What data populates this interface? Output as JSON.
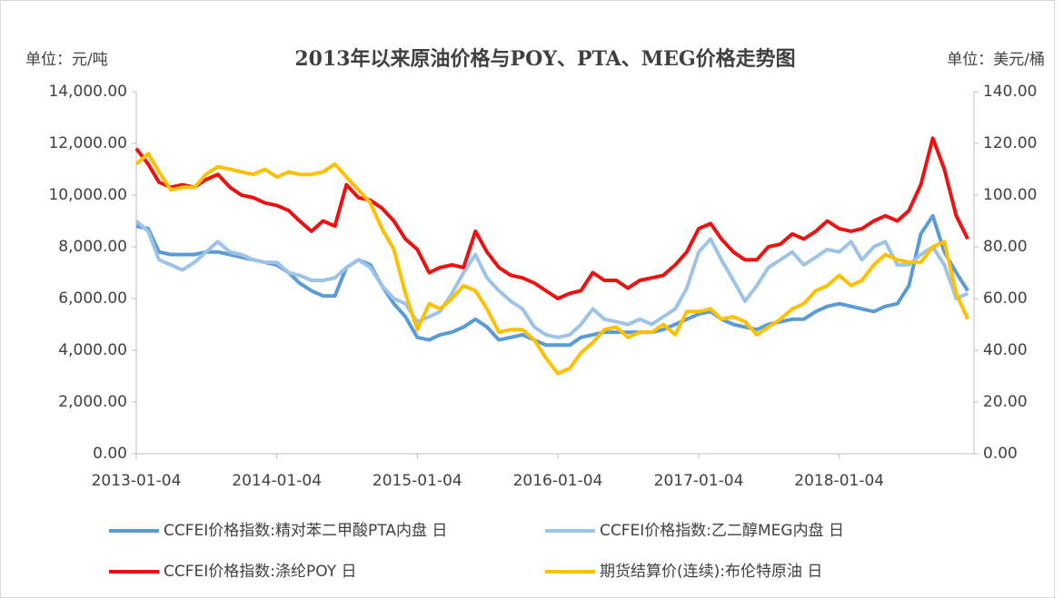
{
  "chart_data": {
    "type": "line",
    "title": "2013年以来原油价格与POY、PTA、MEG价格走势图",
    "y_label": "单位：元/吨",
    "y2_label": "单位：美元/桶",
    "x": [
      "2013-01-04",
      "2013-02-04",
      "2013-03-04",
      "2013-04-04",
      "2013-05-04",
      "2013-06-04",
      "2013-07-04",
      "2013-08-04",
      "2013-09-04",
      "2013-10-04",
      "2013-11-04",
      "2013-12-04",
      "2014-01-04",
      "2014-02-04",
      "2014-03-04",
      "2014-04-04",
      "2014-05-04",
      "2014-06-04",
      "2014-07-04",
      "2014-08-04",
      "2014-09-04",
      "2014-10-04",
      "2014-11-04",
      "2014-12-04",
      "2015-01-04",
      "2015-02-04",
      "2015-03-04",
      "2015-04-04",
      "2015-05-04",
      "2015-06-04",
      "2015-07-04",
      "2015-08-04",
      "2015-09-04",
      "2015-10-04",
      "2015-11-04",
      "2015-12-04",
      "2016-01-04",
      "2016-02-04",
      "2016-03-04",
      "2016-04-04",
      "2016-05-04",
      "2016-06-04",
      "2016-07-04",
      "2016-08-04",
      "2016-09-04",
      "2016-10-04",
      "2016-11-04",
      "2016-12-04",
      "2017-01-04",
      "2017-02-04",
      "2017-03-04",
      "2017-04-04",
      "2017-05-04",
      "2017-06-04",
      "2017-07-04",
      "2017-08-04",
      "2017-09-04",
      "2017-10-04",
      "2017-11-04",
      "2017-12-04",
      "2018-01-04",
      "2018-02-04",
      "2018-03-04",
      "2018-04-04",
      "2018-05-04",
      "2018-06-04",
      "2018-07-04",
      "2018-08-04",
      "2018-09-04",
      "2018-10-04",
      "2018-11-04",
      "2018-12-04"
    ],
    "xlim": [
      "2013-01-04",
      "2018-12-20"
    ],
    "xticks": [
      "2013-01-04",
      "2014-01-04",
      "2015-01-04",
      "2016-01-04",
      "2017-01-04",
      "2018-01-04"
    ],
    "ylim": [
      0,
      14000
    ],
    "yticks": [
      {
        "value": 0,
        "label": "0.00"
      },
      {
        "value": 2000,
        "label": "2,000.00"
      },
      {
        "value": 4000,
        "label": "4,000.00"
      },
      {
        "value": 6000,
        "label": "6,000.00"
      },
      {
        "value": 8000,
        "label": "8,000.00"
      },
      {
        "value": 10000,
        "label": "10,000.00"
      },
      {
        "value": 12000,
        "label": "12,000.00"
      },
      {
        "value": 14000,
        "label": "14,000.00"
      }
    ],
    "y2lim": [
      0,
      140
    ],
    "y2ticks": [
      {
        "value": 0,
        "label": "0.00"
      },
      {
        "value": 20,
        "label": "20.00"
      },
      {
        "value": 40,
        "label": "40.00"
      },
      {
        "value": 60,
        "label": "60.00"
      },
      {
        "value": 80,
        "label": "80.00"
      },
      {
        "value": 100,
        "label": "100.00"
      },
      {
        "value": 120,
        "label": "120.00"
      },
      {
        "value": 140,
        "label": "140.00"
      }
    ],
    "series": [
      {
        "name": "CCFEI价格指数:精对苯二甲酸PTA内盘 日",
        "color": "#5b9bd5",
        "values": [
          8800,
          8700,
          7800,
          7700,
          7700,
          7700,
          7800,
          7800,
          7700,
          7600,
          7500,
          7400,
          7300,
          7000,
          6600,
          6300,
          6100,
          6100,
          7200,
          7500,
          7300,
          6500,
          5800,
          5300,
          4500,
          4400,
          4600,
          4700,
          4900,
          5200,
          4900,
          4400,
          4500,
          4600,
          4400,
          4200,
          4200,
          4200,
          4500,
          4600,
          4700,
          4700,
          4700,
          4700,
          4700,
          4800,
          5000,
          5200,
          5400,
          5500,
          5200,
          5000,
          4900,
          4800,
          5000,
          5100,
          5200,
          5200,
          5500,
          5700,
          5800,
          5700,
          5600,
          5500,
          5700,
          5800,
          6500,
          8500,
          9200,
          7800,
          7000,
          6300
        ]
      },
      {
        "name": "CCFEI价格指数:乙二醇MEG内盘 日",
        "color": "#9dc3e6",
        "values": [
          9000,
          8600,
          7500,
          7300,
          7100,
          7400,
          7800,
          8200,
          7800,
          7700,
          7500,
          7400,
          7400,
          7000,
          6900,
          6700,
          6700,
          6800,
          7200,
          7500,
          7200,
          6500,
          6000,
          5800,
          5100,
          5300,
          5500,
          6200,
          7000,
          7700,
          6800,
          6300,
          5900,
          5600,
          4900,
          4600,
          4500,
          4600,
          5000,
          5600,
          5200,
          5100,
          5000,
          5200,
          5000,
          5300,
          5600,
          6400,
          7800,
          8300,
          7500,
          6700,
          5900,
          6500,
          7200,
          7500,
          7800,
          7300,
          7600,
          7900,
          7800,
          8200,
          7500,
          8000,
          8200,
          7300,
          7300,
          7700,
          8000,
          7300,
          6000,
          6200
        ]
      },
      {
        "name": "CCFEI价格指数:涤纶POY 日",
        "color": "#ee1111",
        "values": [
          11800,
          11200,
          10500,
          10300,
          10400,
          10300,
          10600,
          10800,
          10300,
          10000,
          9900,
          9700,
          9600,
          9400,
          9000,
          8600,
          9000,
          8800,
          10400,
          9900,
          9800,
          9500,
          9000,
          8300,
          7900,
          7000,
          7200,
          7300,
          7200,
          8600,
          7800,
          7200,
          6900,
          6800,
          6600,
          6300,
          6000,
          6200,
          6300,
          7000,
          6700,
          6700,
          6400,
          6700,
          6800,
          6900,
          7300,
          7800,
          8700,
          8900,
          8300,
          7800,
          7500,
          7500,
          8000,
          8100,
          8500,
          8300,
          8600,
          9000,
          8700,
          8600,
          8700,
          9000,
          9200,
          9000,
          9400,
          10400,
          12200,
          11000,
          9200,
          8300
        ]
      },
      {
        "name": "期货结算价(连续):布伦特原油 日",
        "color": "#ffc000",
        "axis": "y2",
        "values": [
          112,
          116,
          109,
          102,
          103,
          103,
          108,
          111,
          110,
          109,
          108,
          110,
          107,
          109,
          108,
          108,
          109,
          112,
          107,
          102,
          97,
          87,
          79,
          62,
          48,
          58,
          56,
          60,
          65,
          63,
          56,
          47,
          48,
          48,
          44,
          37,
          31,
          33,
          39,
          43,
          48,
          49,
          45,
          47,
          47,
          50,
          46,
          55,
          55,
          56,
          52,
          53,
          51,
          46,
          49,
          52,
          56,
          58,
          63,
          65,
          69,
          65,
          67,
          73,
          77,
          75,
          74,
          74,
          80,
          82,
          62,
          52
        ]
      }
    ]
  }
}
